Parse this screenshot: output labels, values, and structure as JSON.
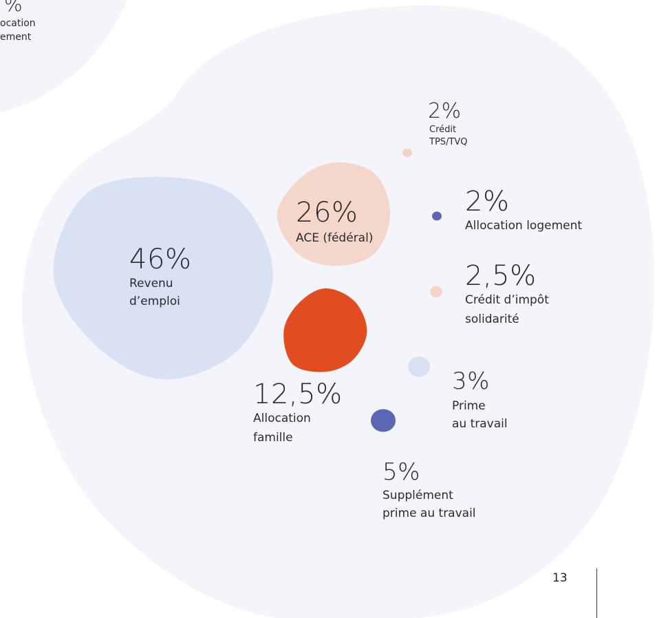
{
  "colors": {
    "page_bg": "#ffffff",
    "blob_bg": "#f4f5fb",
    "revenu": "#d9e2f4",
    "ace": "#f4d6cb",
    "famille": "#e24c21",
    "navy": "#5a67b3",
    "peach": "#f5d4c7",
    "light_blue": "#d8e1f2"
  },
  "partial_corner": {
    "pct": "%",
    "label_line1": "ocation",
    "label_line2": "ement"
  },
  "page_number": "13",
  "chart_data": {
    "type": "bubble",
    "units": "%",
    "items": [
      {
        "pct": "46%",
        "value": 46,
        "label_lines": [
          "Revenu",
          "d’emploi"
        ],
        "color": "#d9e2f4"
      },
      {
        "pct": "26%",
        "value": 26,
        "label_lines": [
          "ACE (fédéral)"
        ],
        "color": "#f4d6cb"
      },
      {
        "pct": "12,5%",
        "value": 12.5,
        "label_lines": [
          "Allocation",
          "famille"
        ],
        "color": "#e24c21"
      },
      {
        "pct": "5%",
        "value": 5,
        "label_lines": [
          "Supplément",
          "prime au travail"
        ],
        "color": "#5a67b3"
      },
      {
        "pct": "3%",
        "value": 3,
        "label_lines": [
          "Prime",
          "au travail"
        ],
        "color": "#d8e1f2"
      },
      {
        "pct": "2,5%",
        "value": 2.5,
        "label_lines": [
          "Crédit d’impôt",
          "solidarité"
        ],
        "color": "#f5d4c7"
      },
      {
        "pct": "2%",
        "value": 2,
        "label_lines": [
          "Allocation logement"
        ],
        "color": "#5a67b3"
      },
      {
        "pct": "2%",
        "value": 2,
        "label_lines": [
          "Crédit",
          "TPS/TVQ"
        ],
        "color": "#f5d4c7"
      }
    ]
  }
}
